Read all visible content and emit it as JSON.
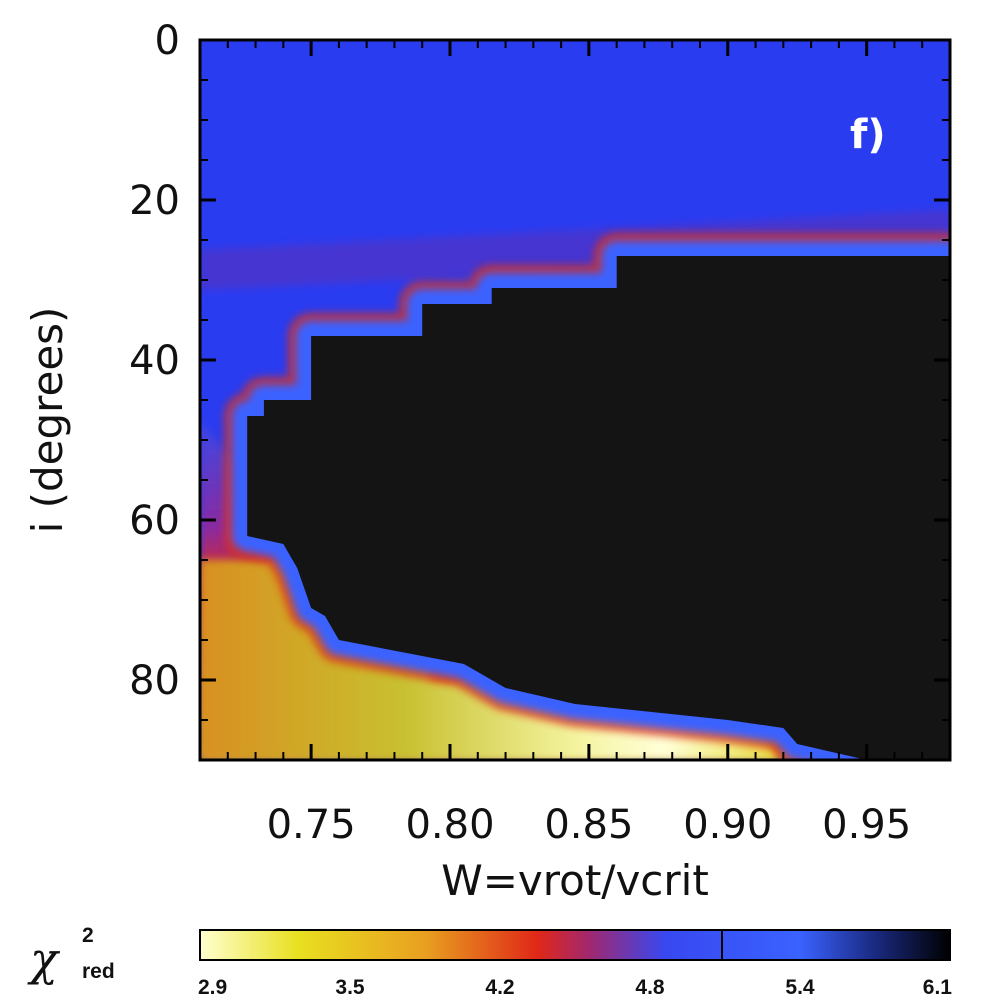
{
  "chart_data": {
    "type": "heatmap",
    "panel_label": "f)",
    "xlabel": "W=vrot/vcrit",
    "ylabel": "i (degrees)",
    "xlim": [
      0.71,
      0.98
    ],
    "ylim": [
      0,
      90
    ],
    "y_inverted": true,
    "x_ticks": [
      0.75,
      0.8,
      0.85,
      0.9,
      0.95
    ],
    "x_tick_labels": [
      "0.75",
      "0.80",
      "0.85",
      "0.90",
      "0.95"
    ],
    "y_ticks": [
      0,
      20,
      40,
      60,
      80
    ],
    "y_tick_labels": [
      "0",
      "20",
      "40",
      "60",
      "80"
    ],
    "value_range": [
      2.9,
      6.1
    ],
    "colorbar": {
      "label_main": "χ",
      "label_sup": "2",
      "label_sub": "red",
      "ticks": [
        "2.9",
        "3.5",
        "4.2",
        "4.8",
        "5.4",
        "6.1"
      ],
      "colors": [
        "#ffffd0",
        "#e8e020",
        "#e8a020",
        "#e02818",
        "#3848f0",
        "#3a62ff",
        "#101020",
        "#000000"
      ]
    },
    "black_region_boundary": [
      [
        0.727,
        47
      ],
      [
        0.733,
        47
      ],
      [
        0.733,
        45
      ],
      [
        0.75,
        45
      ],
      [
        0.75,
        37
      ],
      [
        0.79,
        37
      ],
      [
        0.79,
        33
      ],
      [
        0.815,
        33
      ],
      [
        0.815,
        31
      ],
      [
        0.86,
        31
      ],
      [
        0.86,
        27
      ],
      [
        0.98,
        27
      ],
      [
        0.98,
        90
      ],
      [
        0.95,
        90
      ],
      [
        0.925,
        88
      ],
      [
        0.92,
        86
      ],
      [
        0.9,
        85
      ],
      [
        0.845,
        83
      ],
      [
        0.82,
        81
      ],
      [
        0.805,
        78
      ],
      [
        0.79,
        77
      ],
      [
        0.76,
        75
      ],
      [
        0.755,
        72
      ],
      [
        0.75,
        71
      ],
      [
        0.745,
        66
      ],
      [
        0.74,
        63
      ],
      [
        0.727,
        62
      ]
    ]
  }
}
